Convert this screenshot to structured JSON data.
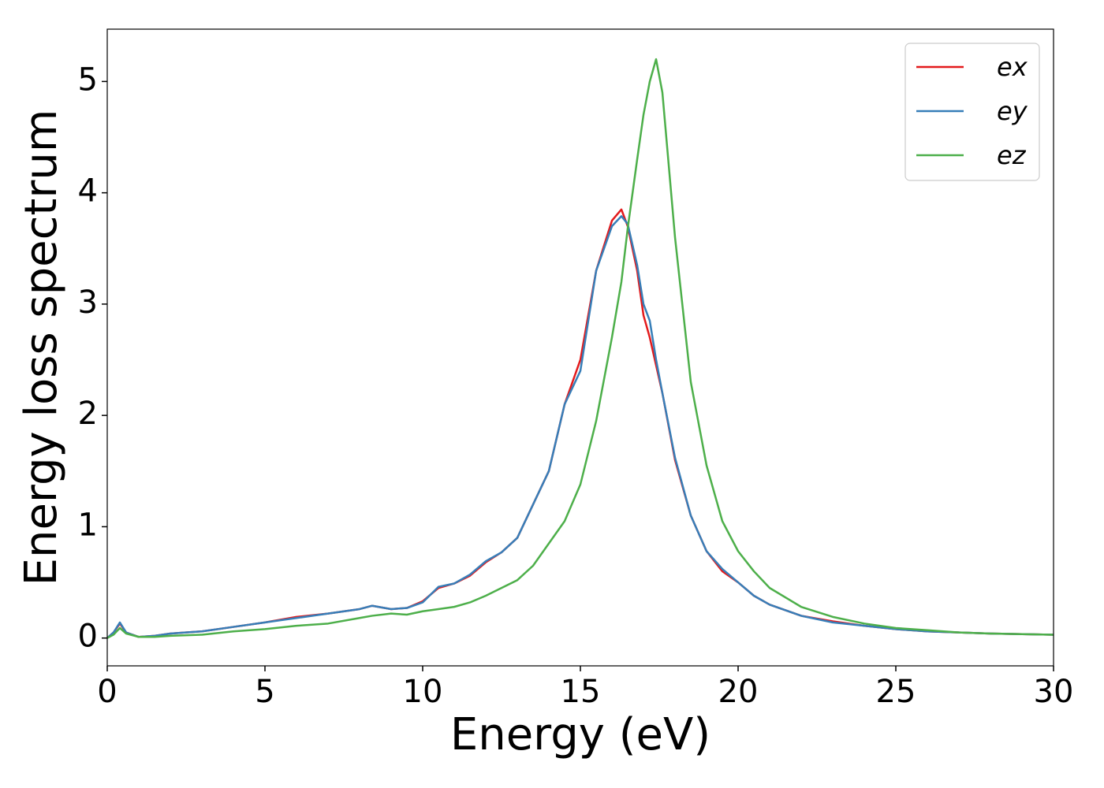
{
  "chart_data": {
    "type": "line",
    "xlabel": "Energy (eV)",
    "ylabel": "Energy loss spectrum",
    "x": [
      0,
      0.2,
      0.4,
      0.6,
      1,
      1.5,
      2,
      3,
      4,
      5,
      6,
      7,
      8,
      8.4,
      9,
      9.5,
      10,
      10.5,
      11,
      11.5,
      12,
      12.5,
      13,
      13.5,
      14,
      14.5,
      15,
      15.5,
      16,
      16.3,
      16.5,
      16.8,
      17,
      17.2,
      17.4,
      17.6,
      18,
      18.5,
      19,
      19.5,
      20,
      20.5,
      21,
      22,
      23,
      24,
      25,
      26,
      27,
      28,
      30
    ],
    "series": [
      {
        "name": "ex",
        "color": "#e31a1c",
        "values": [
          0,
          0.05,
          0.13,
          0.05,
          0.01,
          0.02,
          0.04,
          0.06,
          0.1,
          0.14,
          0.19,
          0.22,
          0.26,
          0.29,
          0.26,
          0.27,
          0.33,
          0.45,
          0.49,
          0.56,
          0.68,
          0.77,
          0.9,
          1.2,
          1.5,
          2.1,
          2.5,
          3.3,
          3.75,
          3.85,
          3.7,
          3.3,
          2.9,
          2.7,
          2.45,
          2.2,
          1.6,
          1.1,
          0.78,
          0.6,
          0.5,
          0.38,
          0.3,
          0.2,
          0.15,
          0.11,
          0.08,
          0.06,
          0.05,
          0.04,
          0.03
        ]
      },
      {
        "name": "ey",
        "color": "#377eb8",
        "values": [
          0,
          0.05,
          0.14,
          0.05,
          0.01,
          0.02,
          0.04,
          0.06,
          0.1,
          0.14,
          0.18,
          0.22,
          0.26,
          0.29,
          0.26,
          0.27,
          0.32,
          0.46,
          0.49,
          0.57,
          0.69,
          0.77,
          0.9,
          1.2,
          1.5,
          2.1,
          2.4,
          3.3,
          3.7,
          3.79,
          3.72,
          3.35,
          3.0,
          2.85,
          2.5,
          2.2,
          1.62,
          1.1,
          0.78,
          0.62,
          0.5,
          0.38,
          0.3,
          0.2,
          0.14,
          0.11,
          0.08,
          0.06,
          0.05,
          0.04,
          0.03
        ]
      },
      {
        "name": "ez",
        "color": "#4daf4a",
        "values": [
          0,
          0.03,
          0.09,
          0.04,
          0.01,
          0.01,
          0.02,
          0.03,
          0.06,
          0.08,
          0.11,
          0.13,
          0.18,
          0.2,
          0.22,
          0.21,
          0.24,
          0.26,
          0.28,
          0.32,
          0.38,
          0.45,
          0.52,
          0.65,
          0.85,
          1.05,
          1.38,
          1.95,
          2.7,
          3.2,
          3.68,
          4.3,
          4.7,
          5.0,
          5.2,
          4.9,
          3.6,
          2.3,
          1.55,
          1.05,
          0.78,
          0.6,
          0.45,
          0.28,
          0.19,
          0.13,
          0.09,
          0.07,
          0.05,
          0.04,
          0.03
        ]
      }
    ],
    "xlim": [
      0,
      30
    ],
    "ylim": [
      -0.25,
      5.47
    ],
    "xticks": [
      0,
      5,
      10,
      15,
      20,
      25,
      30
    ],
    "yticks": [
      0,
      1,
      2,
      3,
      4,
      5
    ],
    "legend": "upper right"
  }
}
